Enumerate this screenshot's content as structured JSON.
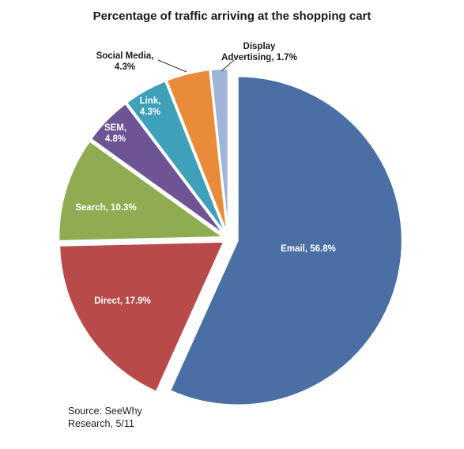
{
  "chart_data": {
    "type": "pie",
    "title": "Percentage of traffic arriving at the shopping cart",
    "source": "Source: SeeWhy\nResearch, 5/11",
    "slices": [
      {
        "name": "Email",
        "value": 56.8,
        "label_lines": [
          "Email, 56.8%"
        ],
        "color": "#4a6fa5",
        "label_color": "#ffffff"
      },
      {
        "name": "Direct",
        "value": 17.9,
        "label_lines": [
          "Direct, 17.9%"
        ],
        "color": "#b94a4a",
        "label_color": "#ffffff"
      },
      {
        "name": "Search",
        "value": 10.3,
        "label_lines": [
          "Search, 10.3%"
        ],
        "color": "#8fac52",
        "label_color": "#ffffff"
      },
      {
        "name": "SEM",
        "value": 4.8,
        "label_lines": [
          "SEM,",
          "4.8%"
        ],
        "color": "#6f5495",
        "label_color": "#ffffff"
      },
      {
        "name": "Link",
        "value": 4.3,
        "label_lines": [
          "Link,",
          "4.3%"
        ],
        "color": "#3ea0b9",
        "label_color": "#ffffff"
      },
      {
        "name": "Social Media",
        "value": 4.3,
        "label_lines": [
          "Social Media,",
          "4.3%"
        ],
        "color": "#e98b39",
        "label_color": "#1a1a1a"
      },
      {
        "name": "Display Advertising",
        "value": 1.7,
        "label_lines": [
          "Display",
          "Advertising, 1.7%"
        ],
        "color": "#a0b4d8",
        "label_color": "#1a1a1a"
      }
    ]
  }
}
